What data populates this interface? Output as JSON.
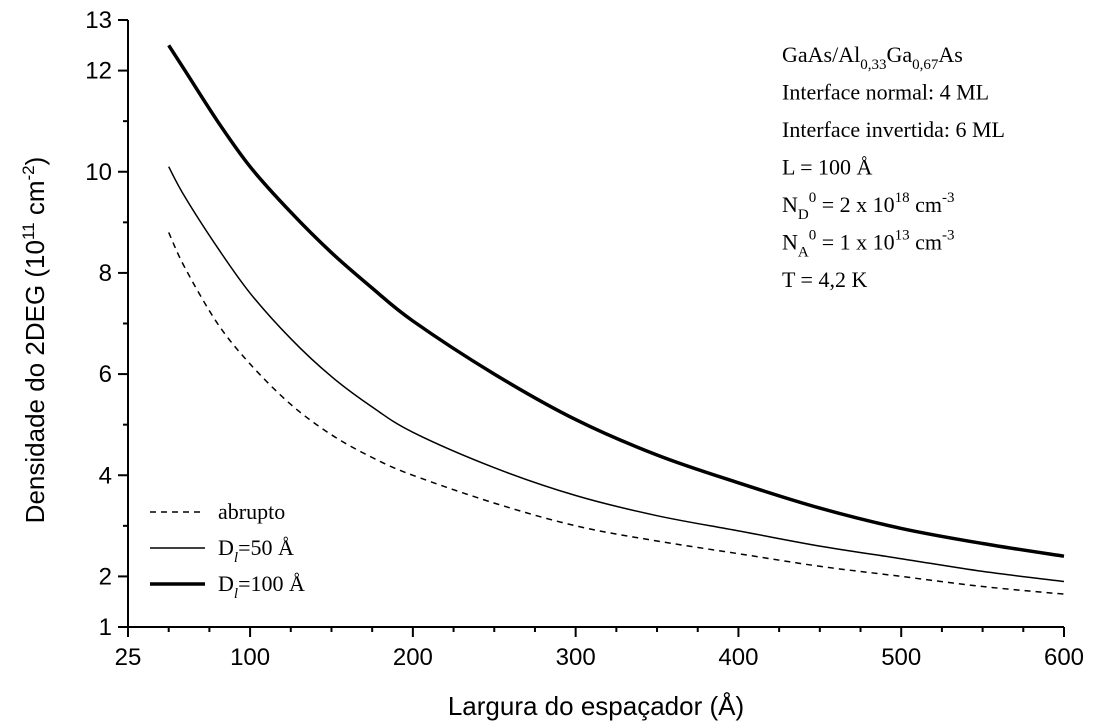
{
  "chart_data": {
    "type": "line",
    "xlabel": "Largura do espaçador (Å)",
    "ylabel": "Densidade do 2DEG (10¹¹ cm⁻²)",
    "ylabel_parts": {
      "base": "Densidade do 2DEG (10",
      "exp1": "11",
      "mid": " cm",
      "exp2": "-2",
      "end": ")"
    },
    "xlim": [
      25,
      600
    ],
    "ylim": [
      1,
      13
    ],
    "x_ticks": [
      25,
      100,
      200,
      300,
      400,
      500,
      600
    ],
    "y_ticks": [
      1,
      2,
      4,
      6,
      8,
      10,
      12,
      13
    ],
    "grid": false,
    "legend_position": "bottom-left",
    "series": [
      {
        "name": "abrupto",
        "style": "dashed",
        "x": [
          50,
          60,
          80,
          100,
          125,
          150,
          175,
          200,
          250,
          300,
          350,
          400,
          450,
          500,
          550,
          600
        ],
        "y": [
          8.8,
          8.1,
          7.0,
          6.2,
          5.4,
          4.8,
          4.35,
          4.0,
          3.45,
          3.0,
          2.7,
          2.45,
          2.2,
          2.0,
          1.8,
          1.65
        ]
      },
      {
        "name": "D_l=50 Å",
        "name_parts": {
          "pre": "D",
          "sub": "l",
          "post": "=50 Å"
        },
        "style": "thin",
        "x": [
          50,
          60,
          80,
          100,
          125,
          150,
          175,
          200,
          250,
          300,
          350,
          400,
          450,
          500,
          550,
          600
        ],
        "y": [
          10.1,
          9.5,
          8.5,
          7.6,
          6.7,
          5.95,
          5.35,
          4.85,
          4.15,
          3.6,
          3.2,
          2.9,
          2.6,
          2.35,
          2.1,
          1.9
        ]
      },
      {
        "name": "D_l=100 Å",
        "name_parts": {
          "pre": "D",
          "sub": "l",
          "post": "=100 Å"
        },
        "style": "thick",
        "x": [
          50,
          60,
          80,
          100,
          125,
          150,
          175,
          200,
          250,
          300,
          350,
          400,
          450,
          500,
          550,
          600
        ],
        "y": [
          12.5,
          12.0,
          11.0,
          10.1,
          9.2,
          8.4,
          7.7,
          7.05,
          6.0,
          5.1,
          4.4,
          3.85,
          3.35,
          2.95,
          2.65,
          2.4
        ]
      }
    ],
    "annotations": [
      {
        "parts": [
          {
            "t": "GaAs/Al"
          },
          {
            "t": "0,33",
            "s": "sub"
          },
          {
            "t": "Ga"
          },
          {
            "t": "0,67",
            "s": "sub"
          },
          {
            "t": "As"
          }
        ]
      },
      {
        "parts": [
          {
            "t": "Interface normal: 4 ML"
          }
        ]
      },
      {
        "parts": [
          {
            "t": "Interface invertida: 6 ML"
          }
        ]
      },
      {
        "parts": [
          {
            "t": "L = 100 Å"
          }
        ]
      },
      {
        "parts": [
          {
            "t": "N"
          },
          {
            "t": "D",
            "s": "sub"
          },
          {
            "t": "0",
            "s": "sup"
          },
          {
            "t": " = 2 x 10"
          },
          {
            "t": "18",
            "s": "sup"
          },
          {
            "t": " cm"
          },
          {
            "t": "-3",
            "s": "sup"
          }
        ]
      },
      {
        "parts": [
          {
            "t": "N"
          },
          {
            "t": "A",
            "s": "sub"
          },
          {
            "t": "0",
            "s": "sup"
          },
          {
            "t": " = 1 x 10"
          },
          {
            "t": "13",
            "s": "sup"
          },
          {
            "t": " cm"
          },
          {
            "t": "-3",
            "s": "sup"
          }
        ]
      },
      {
        "parts": [
          {
            "t": "T = 4,2 K"
          }
        ]
      }
    ]
  }
}
